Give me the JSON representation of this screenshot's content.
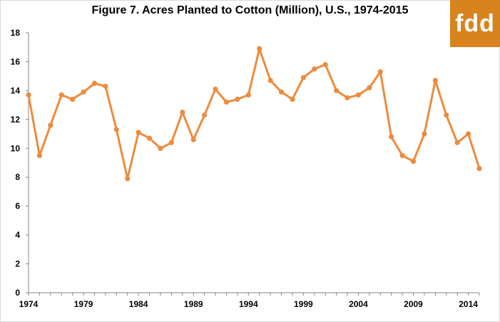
{
  "chart_data": {
    "type": "line",
    "title": "Figure 7. Acres Planted to Cotton (Million),  U.S., 1974-2015",
    "xlabel": "",
    "ylabel": "",
    "ylim": [
      0,
      18
    ],
    "y_ticks": [
      "0",
      "2",
      "4",
      "6",
      "8",
      "10",
      "12",
      "14",
      "16",
      "18"
    ],
    "x_ticks": [
      "1974",
      "1979",
      "1984",
      "1989",
      "1994",
      "1999",
      "2004",
      "2009",
      "2014"
    ],
    "grid": false,
    "series_color": "#ED8B3D",
    "series": [
      {
        "x": [
          1974,
          1975,
          1976,
          1977,
          1978,
          1979,
          1980,
          1981,
          1982,
          1983,
          1984,
          1985,
          1986,
          1987,
          1988,
          1989,
          1990,
          1991,
          1992,
          1993,
          1994,
          1995,
          1996,
          1997,
          1998,
          1999,
          2000,
          2001,
          2002,
          2003,
          2004,
          2005,
          2006,
          2007,
          2008,
          2009,
          2010,
          2011,
          2012,
          2013,
          2014,
          2015
        ],
        "values": [
          13.7,
          9.5,
          11.6,
          13.7,
          13.4,
          13.9,
          14.5,
          14.3,
          11.3,
          7.9,
          11.1,
          10.7,
          10.0,
          10.4,
          12.5,
          10.6,
          12.3,
          14.1,
          13.2,
          13.4,
          13.7,
          16.9,
          14.7,
          13.9,
          13.4,
          14.9,
          15.5,
          15.8,
          14.0,
          13.5,
          13.7,
          14.2,
          15.3,
          10.8,
          9.5,
          9.1,
          11.0,
          14.7,
          12.3,
          10.4,
          11.0,
          8.6
        ]
      }
    ]
  },
  "logo": {
    "text": "fdd",
    "background": "#D9831F"
  }
}
